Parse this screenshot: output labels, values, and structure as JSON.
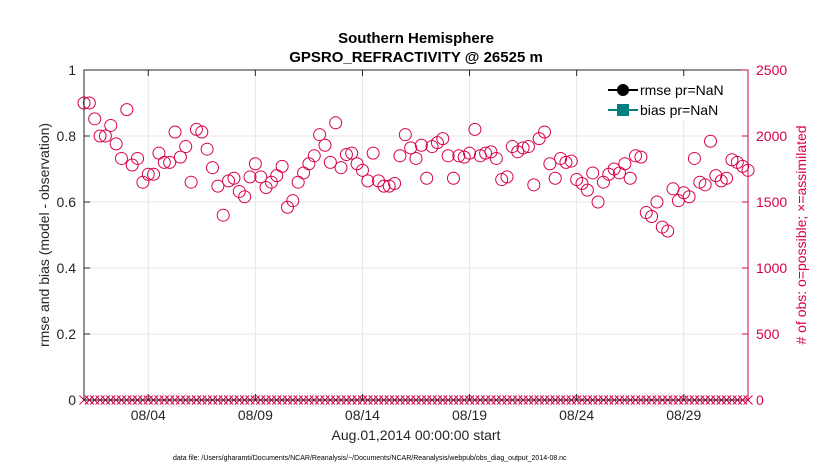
{
  "chart_data": {
    "type": "scatter",
    "title": "Southern Hemisphere",
    "subtitle": "GPSRO_REFRACTIVITY @ 26525 m",
    "xlabel": "Aug.01,2014 00:00:00 start",
    "ylabel": "rmse and bias (model - observation)",
    "ylabel_right": "# of obs: o=possible; ×=assimilated",
    "xlim": [
      0,
      31
    ],
    "ylim": [
      0,
      1
    ],
    "ylim_right": [
      0,
      2500
    ],
    "grid": true,
    "legend_position": "top-right",
    "legend": [
      {
        "name": "rmse pr=NaN",
        "color": "#000000",
        "marker": "circle"
      },
      {
        "name": "bias pr=NaN",
        "color": "#008080",
        "marker": "square"
      }
    ],
    "x_ticks": [
      {
        "value": 3,
        "label": "08/04"
      },
      {
        "value": 8,
        "label": "08/09"
      },
      {
        "value": 13,
        "label": "08/14"
      },
      {
        "value": 18,
        "label": "08/19"
      },
      {
        "value": 23,
        "label": "08/24"
      },
      {
        "value": 28,
        "label": "08/29"
      }
    ],
    "y_ticks": [
      {
        "value": 0,
        "label": "0"
      },
      {
        "value": 0.2,
        "label": "0.2"
      },
      {
        "value": 0.4,
        "label": "0.4"
      },
      {
        "value": 0.6,
        "label": "0.6"
      },
      {
        "value": 0.8,
        "label": "0.8"
      },
      {
        "value": 1,
        "label": "1"
      }
    ],
    "y_ticks_right": [
      {
        "value": 0,
        "label": "0"
      },
      {
        "value": 500,
        "label": "500"
      },
      {
        "value": 1000,
        "label": "1000"
      },
      {
        "value": 1500,
        "label": "1500"
      },
      {
        "value": 2000,
        "label": "2000"
      },
      {
        "value": 2500,
        "label": "2500"
      }
    ],
    "series": [
      {
        "name": "possible",
        "axis": "right",
        "marker": "circle-open",
        "color": "#d9004c",
        "x_start": 0,
        "x_step": 0.25,
        "values": [
          2250,
          2250,
          2130,
          2000,
          2000,
          2080,
          1940,
          1830,
          2200,
          1780,
          1830,
          1650,
          1710,
          1710,
          1870,
          1800,
          1800,
          2030,
          1840,
          1920,
          1650,
          2050,
          2030,
          1900,
          1760,
          1620,
          1400,
          1660,
          1680,
          1580,
          1540,
          1690,
          1790,
          1690,
          1610,
          1650,
          1700,
          1770,
          1460,
          1510,
          1650,
          1720,
          1790,
          1850,
          2010,
          1930,
          1800,
          2100,
          1760,
          1860,
          1870,
          1790,
          1740,
          1660,
          1870,
          1660,
          1620,
          1620,
          1640,
          1850,
          2010,
          1910,
          1830,
          1930,
          1680,
          1920,
          1950,
          1980,
          1850,
          1680,
          1850,
          1840,
          1870,
          2050,
          1850,
          1870,
          1880,
          1830,
          1670,
          1690,
          1920,
          1880,
          1910,
          1920,
          1630,
          1980,
          2030,
          1790,
          1680,
          1830,
          1800,
          1810,
          1670,
          1640,
          1590,
          1720,
          1500,
          1650,
          1710,
          1750,
          1720,
          1790,
          1680,
          1850,
          1840,
          1420,
          1390,
          1500,
          1310,
          1280,
          1600,
          1510,
          1570,
          1540,
          1830,
          1650,
          1630,
          1960,
          1700,
          1660,
          1680,
          1820,
          1800,
          1770,
          1740
        ]
      },
      {
        "name": "assimilated",
        "axis": "right",
        "marker": "x",
        "color": "#d9004c",
        "x_start": 0,
        "x_step": 0.25,
        "count": 125,
        "value": 0
      }
    ],
    "footnote": "data file: /Users/gharamti/Documents/NCAR/Reanalysis/~/Documents/NCAR/Reanalysis/webpub/obs_diag_output_2014-08.nc"
  },
  "colors": {
    "possible": "#d9004c",
    "axis": "#262626",
    "grid": "#e6e6e6",
    "rmse": "#000000",
    "bias": "#008080"
  }
}
